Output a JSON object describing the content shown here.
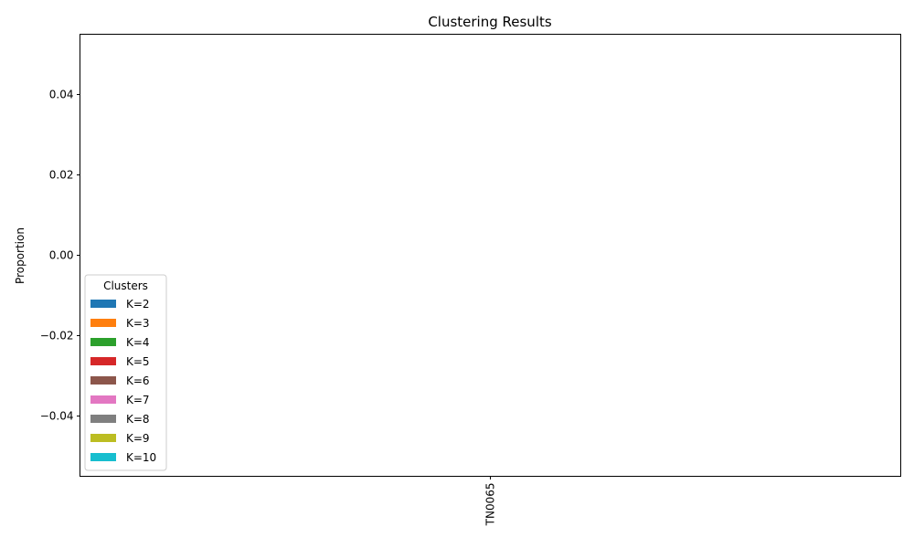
{
  "chart_data": {
    "type": "bar",
    "stacked": true,
    "title": "Clustering Results",
    "xlabel": "",
    "ylabel": "Proportion",
    "categories": [
      "TN0065"
    ],
    "ylim": [
      -0.055,
      0.055
    ],
    "yticks": [
      -0.04,
      -0.02,
      0.0,
      0.02,
      0.04
    ],
    "ytick_labels": [
      "−0.04",
      "−0.02",
      "0.00",
      "0.02",
      "0.04"
    ],
    "grid": false,
    "legend": {
      "title": "Clusters",
      "placement": "lower-left"
    },
    "series": [
      {
        "name": "K=2",
        "color": "#1f77b4",
        "values": [
          0
        ]
      },
      {
        "name": "K=3",
        "color": "#ff7f0e",
        "values": [
          0
        ]
      },
      {
        "name": "K=4",
        "color": "#2ca02c",
        "values": [
          0
        ]
      },
      {
        "name": "K=5",
        "color": "#d62728",
        "values": [
          0
        ]
      },
      {
        "name": "K=6",
        "color": "#8c564b",
        "values": [
          0
        ]
      },
      {
        "name": "K=7",
        "color": "#e377c2",
        "values": [
          0
        ]
      },
      {
        "name": "K=8",
        "color": "#7f7f7f",
        "values": [
          0
        ]
      },
      {
        "name": "K=9",
        "color": "#bcbd22",
        "values": [
          0
        ]
      },
      {
        "name": "K=10",
        "color": "#17becf",
        "values": [
          0
        ]
      }
    ]
  }
}
